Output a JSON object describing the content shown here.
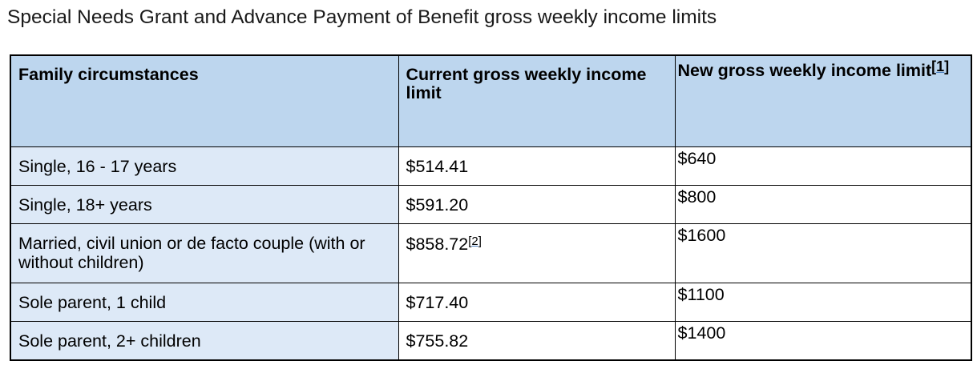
{
  "title": "Special Needs Grant and Advance Payment of Benefit gross weekly income limits",
  "table": {
    "headers": {
      "family": "Family circumstances",
      "current": "Current gross weekly income limit",
      "new_text": "New gross weekly income limit",
      "new_footnote": "1"
    },
    "rows": [
      {
        "family": "Single, 16 - 17 years",
        "current": "$514.41",
        "current_footnote": "",
        "new": "$640"
      },
      {
        "family": "Single, 18+ years",
        "current": "$591.20",
        "current_footnote": "",
        "new": "$800"
      },
      {
        "family": "Married, civil union or de facto couple (with or without children)",
        "current": "$858.72",
        "current_footnote": "2",
        "new": "$1600"
      },
      {
        "family": "Sole parent, 1 child",
        "current": "$717.40",
        "current_footnote": "",
        "new": "$1100"
      },
      {
        "family": "Sole parent, 2+ children",
        "current": "$755.82",
        "current_footnote": "",
        "new": "$1400"
      }
    ]
  },
  "colors": {
    "header_bg": "#bdd6ee",
    "first_column_bg": "#dde9f7",
    "border": "#000000",
    "link_underline": "#4a7fc1"
  }
}
